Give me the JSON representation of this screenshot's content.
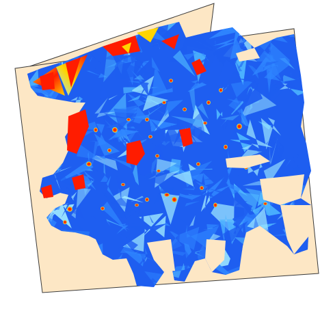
{
  "map": {
    "type": "interpolated-surface-heatmap",
    "colors": {
      "background": "#ffffff",
      "study_area_fill": "#fde7c5",
      "study_area_outline": "#3a3a3a",
      "low": "#1e5ef0",
      "low_mid": "#2f86ff",
      "mid": "#4fb7ff",
      "light": "#9ee8ff",
      "high_mid": "#ffd400",
      "high": "#ff1c00",
      "peak": "#d40000"
    },
    "color_scale": [
      "#1e5ef0",
      "#2f86ff",
      "#4fb7ff",
      "#9ee8ff",
      "#ffd400",
      "#ff1c00"
    ],
    "legend": "none",
    "labels": "none"
  }
}
